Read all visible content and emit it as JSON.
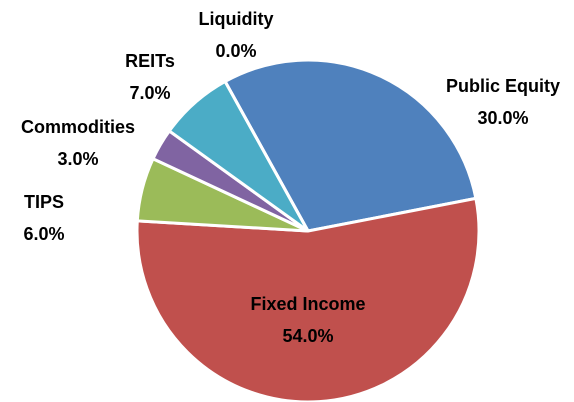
{
  "chart_data": {
    "type": "pie",
    "categories": [
      "Public Equity",
      "Fixed Income",
      "TIPS",
      "Commodities",
      "REITs",
      "Liquidity"
    ],
    "values": [
      30,
      54,
      6,
      3,
      7,
      0
    ],
    "value_labels": [
      "30.0%",
      "54.0%",
      "6.0%",
      "3.0%",
      "7.0%",
      "0.0%"
    ],
    "colors": [
      "#4f81bd",
      "#c0504d",
      "#9bbb59",
      "#8064a2",
      "#4bacc6",
      "#f79646"
    ]
  }
}
